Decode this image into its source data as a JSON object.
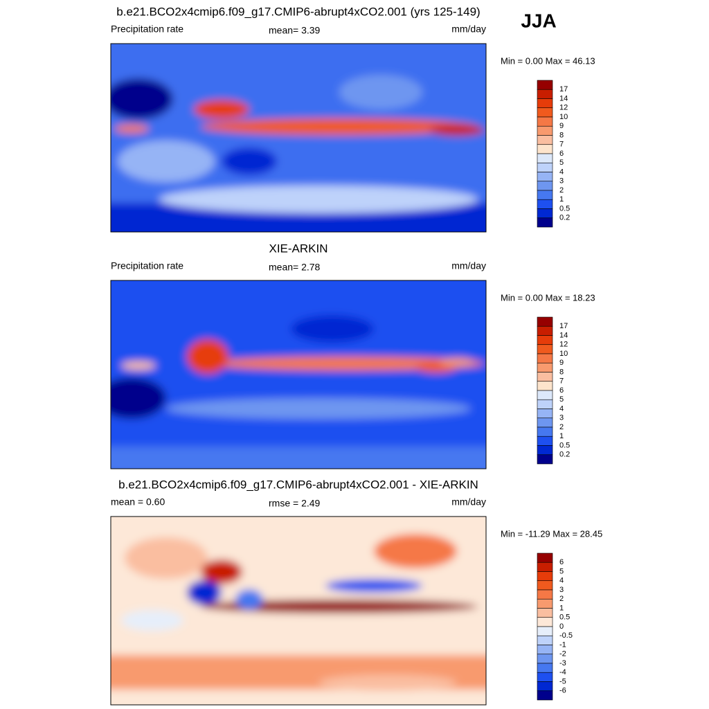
{
  "season": "JJA",
  "panels": [
    {
      "title": "b.e21.BCO2x4cmip6.f09_g17.CMIP6-abrupt4xCO2.001 (yrs 125-149)",
      "left_label": "Precipitation rate",
      "center_label": "mean=   3.39",
      "right_label": "mm/day",
      "minmax": "Min =   0.00 Max =  46.13",
      "colorbar": {
        "labels": [
          "17",
          "14",
          "12",
          "10",
          "9",
          "8",
          "7",
          "6",
          "5",
          "4",
          "3",
          "2",
          "1",
          "0.5",
          "0.2"
        ],
        "colors": [
          "#960000",
          "#c81e00",
          "#e63c0a",
          "#f05a1e",
          "#f57846",
          "#f89a6e",
          "#fabea0",
          "#fde4cc",
          "#dce8fa",
          "#bed2fa",
          "#96b4f5",
          "#6e96f0",
          "#4678f0",
          "#1e50f0",
          "#0028d2",
          "#00008c"
        ]
      }
    },
    {
      "title": "XIE-ARKIN",
      "left_label": "Precipitation rate",
      "center_label": "mean=   2.78",
      "right_label": "mm/day",
      "minmax": "Min =   0.00 Max =  18.23",
      "colorbar": {
        "labels": [
          "17",
          "14",
          "12",
          "10",
          "9",
          "8",
          "7",
          "6",
          "5",
          "4",
          "3",
          "2",
          "1",
          "0.5",
          "0.2"
        ],
        "colors": [
          "#960000",
          "#c81e00",
          "#e63c0a",
          "#f05a1e",
          "#f57846",
          "#f89a6e",
          "#fabea0",
          "#fde4cc",
          "#dce8fa",
          "#bed2fa",
          "#96b4f5",
          "#6e96f0",
          "#4678f0",
          "#1e50f0",
          "#0028d2",
          "#00008c"
        ]
      }
    },
    {
      "title": "b.e21.BCO2x4cmip6.f09_g17.CMIP6-abrupt4xCO2.001 - XIE-ARKIN",
      "left_label": "mean =   0.60",
      "center_label": "rmse =   2.49",
      "right_label": "mm/day",
      "minmax": "Min = -11.29 Max =  28.45",
      "colorbar": {
        "labels": [
          "6",
          "5",
          "4",
          "3",
          "2",
          "1",
          "0.5",
          "0",
          "-0.5",
          "-1",
          "-2",
          "-3",
          "-4",
          "-5",
          "-6"
        ],
        "colors": [
          "#960000",
          "#c81e00",
          "#e63c0a",
          "#f05a1e",
          "#f57846",
          "#f89a6e",
          "#fabea0",
          "#fde8d8",
          "#e6eefa",
          "#bed2fa",
          "#96b4f5",
          "#6e96f0",
          "#4678f0",
          "#1e50f0",
          "#0028d2",
          "#00008c"
        ]
      }
    }
  ]
}
